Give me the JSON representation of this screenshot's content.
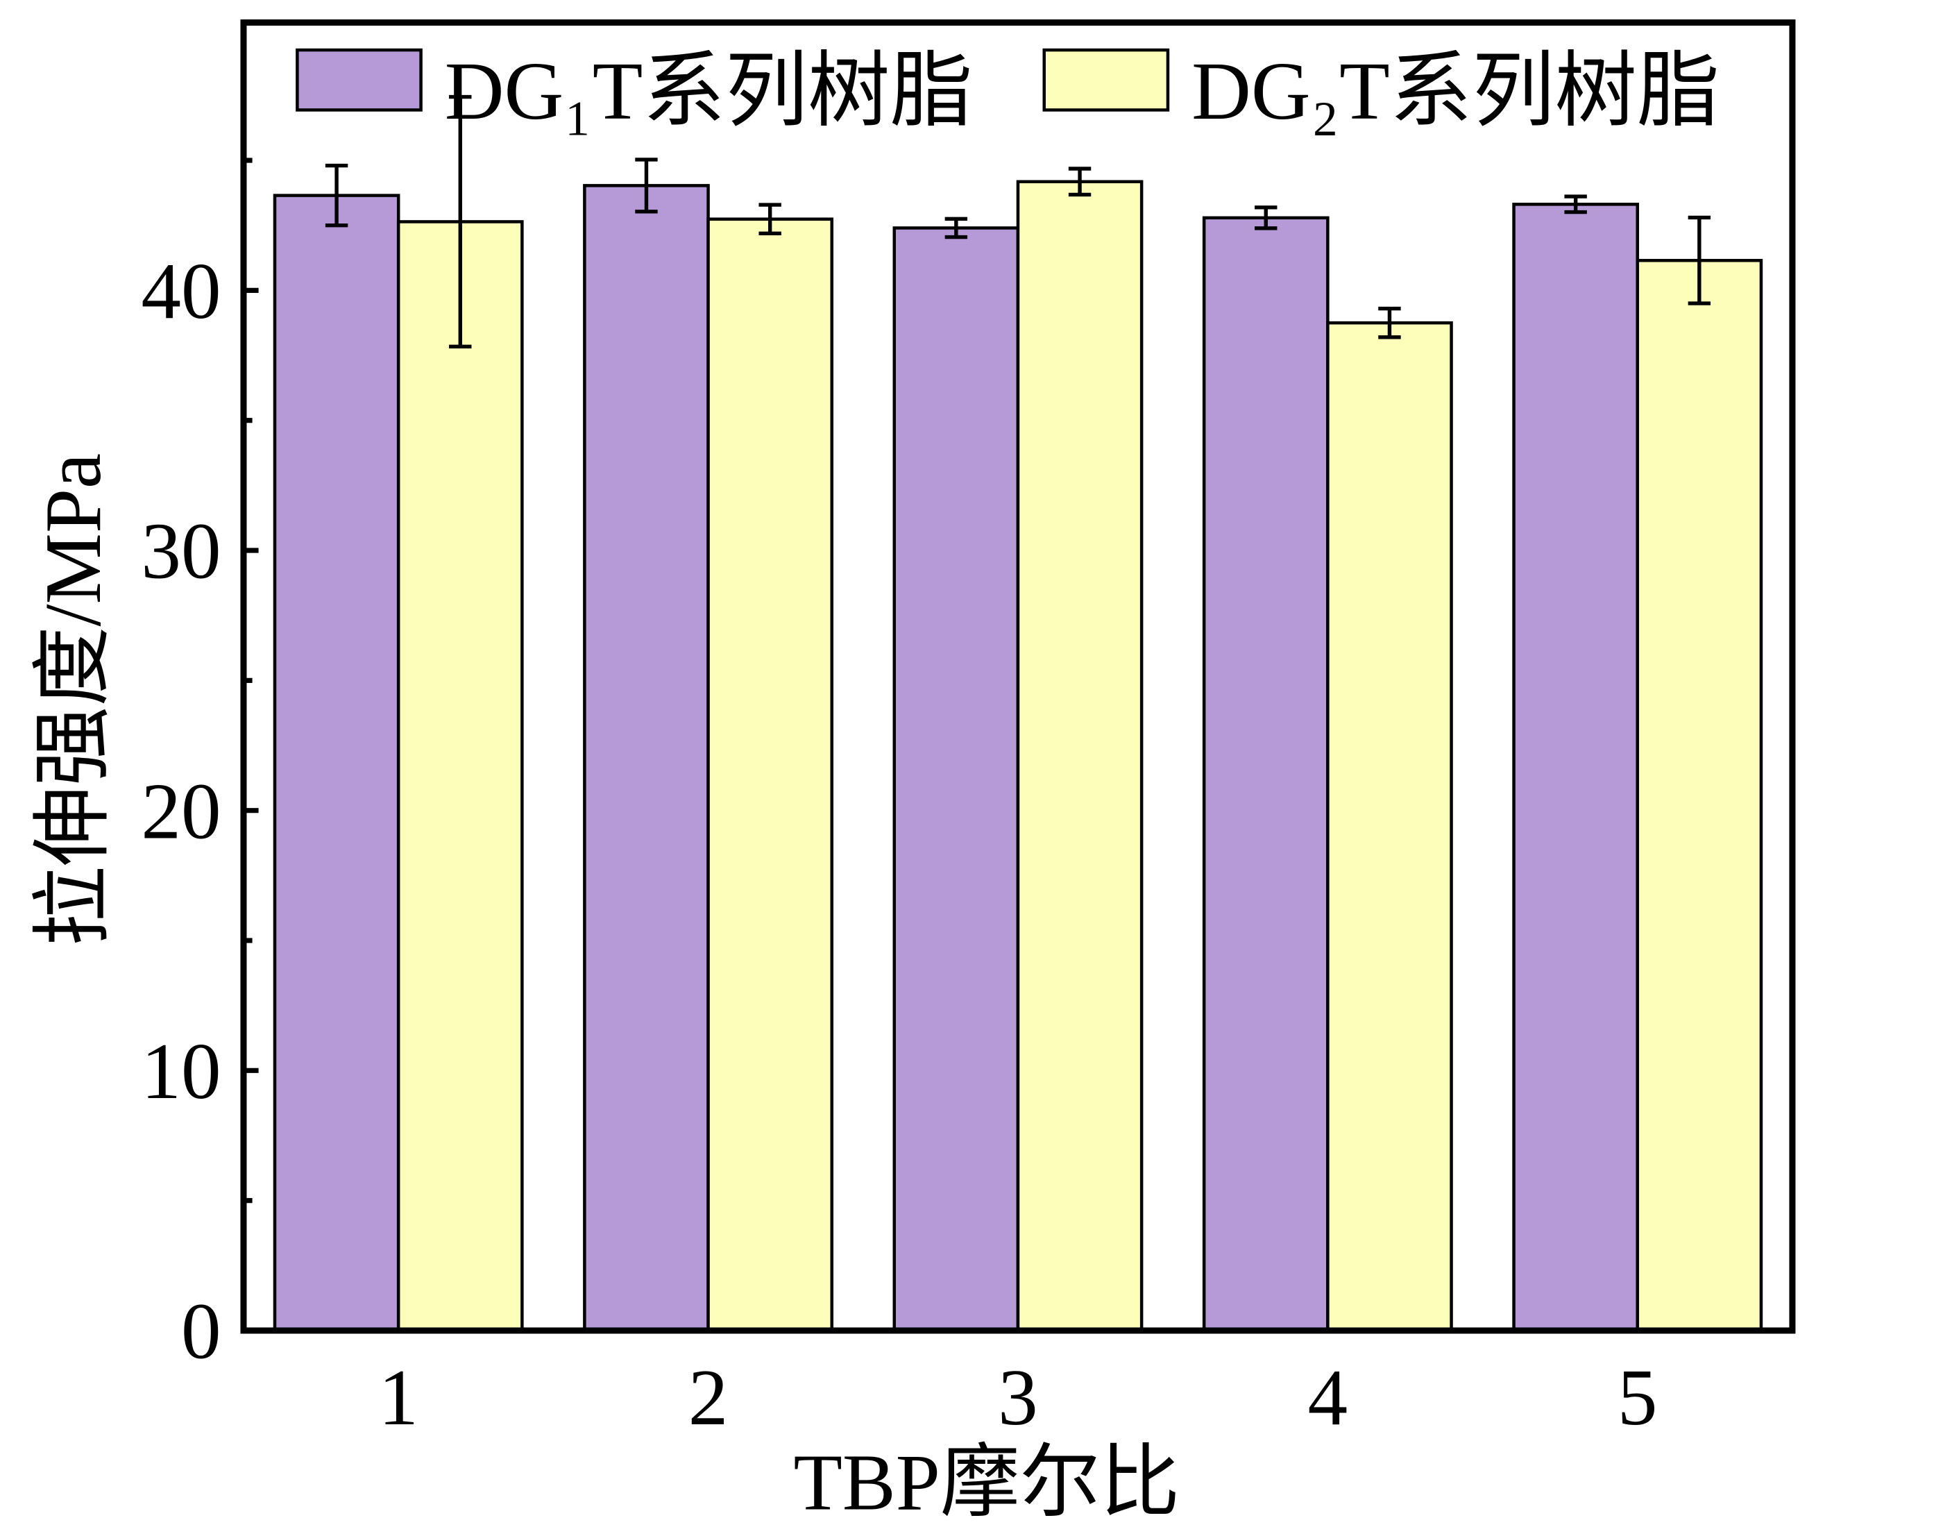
{
  "chart_data": {
    "type": "bar",
    "x_label": "TBP摩尔比",
    "y_label": "拉伸强度/MPa",
    "categories": [
      "1",
      "2",
      "3",
      "4",
      "5"
    ],
    "series": [
      {
        "name": "DG₁T系列树脂",
        "color": "#b69ad8",
        "values": [
          43.65,
          44.03,
          42.4,
          42.79,
          43.31
        ],
        "errors": [
          1.15,
          1.0,
          0.35,
          0.4,
          0.3
        ]
      },
      {
        "name": "DG₂T系列树脂",
        "color": "#fefebb",
        "values": [
          42.64,
          42.74,
          44.18,
          38.75,
          41.15
        ],
        "errors": [
          4.8,
          0.55,
          0.5,
          0.55,
          1.65
        ]
      }
    ],
    "ylim": [
      0,
      50.3
    ],
    "yticks": [
      0,
      10,
      20,
      30,
      40
    ],
    "yminorticks": [
      5,
      15,
      25,
      35,
      45
    ],
    "legend": "top"
  }
}
